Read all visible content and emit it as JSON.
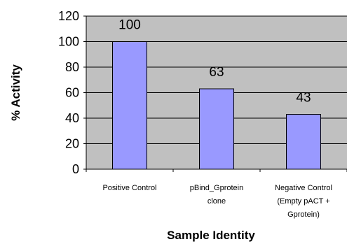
{
  "chart_data": {
    "type": "bar",
    "categories": [
      [
        "Positive Control"
      ],
      [
        "pBind_Gprotein",
        "clone"
      ],
      [
        "Negative Control",
        "(Empty pACT +",
        "Gprotein)"
      ]
    ],
    "values": [
      100,
      63,
      43
    ],
    "data_labels": [
      "100",
      "63",
      "43"
    ],
    "title": "",
    "xlabel": "Sample Identity",
    "ylabel": "% Activity",
    "ylim": [
      0,
      120
    ],
    "yticks": [
      0,
      20,
      40,
      60,
      80,
      100,
      120
    ],
    "ytick_labels": [
      "0",
      "20",
      "40",
      "60",
      "80",
      "100",
      "120"
    ],
    "grid": true,
    "legend": "none",
    "colors": {
      "plot_background": "#c0c0c0",
      "bar_fill": "#9999ff",
      "bar_stroke": "#000000",
      "grid": "#000000"
    }
  }
}
